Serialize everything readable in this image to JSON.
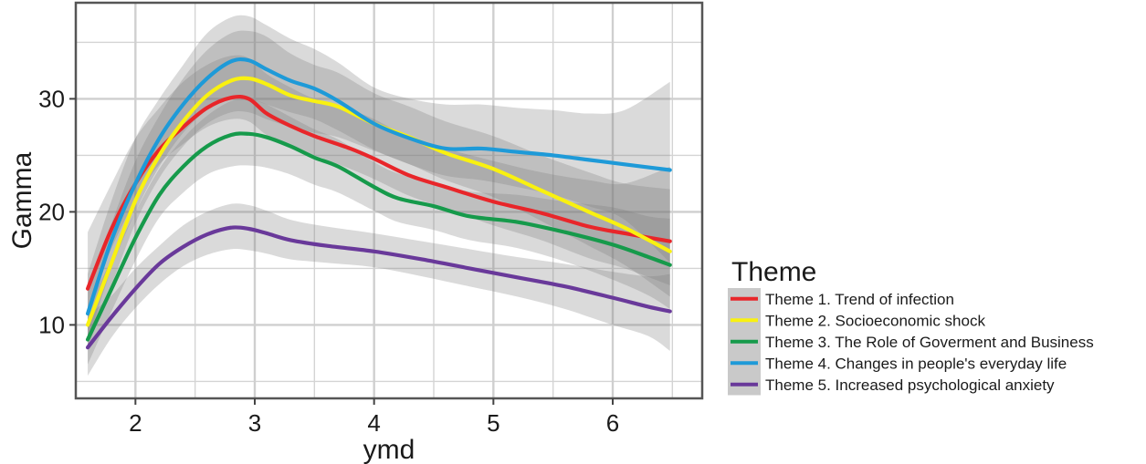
{
  "chart_data": {
    "type": "line",
    "xlabel": "ymd",
    "ylabel": "Gamma",
    "xlim": [
      1.5,
      6.75
    ],
    "ylim": [
      3.5,
      38.5
    ],
    "xticks": [
      2,
      3,
      4,
      5,
      6
    ],
    "yticks": [
      10,
      20,
      30
    ],
    "xtick_labels": [
      "2",
      "3",
      "4",
      "5",
      "6"
    ],
    "ytick_labels": [
      "10",
      "20",
      "30"
    ],
    "grid": true,
    "legend": {
      "title": "Theme",
      "placement": "right"
    },
    "series": [
      {
        "name": "Theme 1. Trend of infection",
        "color": "#e8262a",
        "x": [
          1.6,
          1.8,
          2.0,
          2.2,
          2.4,
          2.6,
          2.8,
          2.95,
          3.1,
          3.3,
          3.5,
          3.8,
          4.0,
          4.3,
          4.6,
          5.0,
          5.4,
          5.8,
          6.1,
          6.48
        ],
        "y": [
          13.2,
          18.5,
          22.5,
          25.5,
          27.5,
          29.2,
          30.1,
          30.0,
          28.7,
          27.6,
          26.7,
          25.6,
          24.7,
          23.2,
          22.2,
          20.9,
          19.9,
          18.7,
          18.1,
          17.4
        ],
        "band": [
          [
            11.5,
            18.2
          ],
          [
            16.8,
            22.5
          ],
          [
            21.0,
            26.5
          ],
          [
            24.2,
            29.2
          ],
          [
            26.0,
            31.5
          ],
          [
            27.5,
            33.0
          ],
          [
            28.2,
            33.8
          ],
          [
            28.0,
            33.6
          ],
          [
            26.8,
            32.2
          ],
          [
            25.8,
            31.0
          ],
          [
            25.0,
            30.0
          ],
          [
            23.8,
            29.0
          ],
          [
            22.9,
            28.2
          ],
          [
            21.4,
            26.6
          ],
          [
            20.3,
            25.6
          ],
          [
            18.8,
            24.5
          ],
          [
            17.5,
            23.5
          ],
          [
            15.9,
            22.8
          ],
          [
            15.0,
            22.5
          ],
          [
            13.5,
            24.0
          ]
        ]
      },
      {
        "name": "Theme 2. Socioeconomic shock",
        "color": "#f9f110",
        "x": [
          1.6,
          1.8,
          2.0,
          2.2,
          2.4,
          2.6,
          2.8,
          2.95,
          3.1,
          3.3,
          3.5,
          3.7,
          4.0,
          4.3,
          4.6,
          5.0,
          5.4,
          5.8,
          6.1,
          6.48
        ],
        "y": [
          10.0,
          15.5,
          21.0,
          25.0,
          28.0,
          30.3,
          31.6,
          31.8,
          31.3,
          30.3,
          29.8,
          29.3,
          27.8,
          26.6,
          25.2,
          23.8,
          21.9,
          20.0,
          18.6,
          16.5
        ],
        "band": [
          [
            8.0,
            13.0
          ],
          [
            13.5,
            19.0
          ],
          [
            19.0,
            24.5
          ],
          [
            23.0,
            28.5
          ],
          [
            25.8,
            31.8
          ],
          [
            27.8,
            34.3
          ],
          [
            28.8,
            35.8
          ],
          [
            28.8,
            36.0
          ],
          [
            28.2,
            35.5
          ],
          [
            27.5,
            34.0
          ],
          [
            27.0,
            33.0
          ],
          [
            26.6,
            32.3
          ],
          [
            25.4,
            30.5
          ],
          [
            24.2,
            29.3
          ],
          [
            22.8,
            28.0
          ],
          [
            21.3,
            26.7
          ],
          [
            19.2,
            25.0
          ],
          [
            17.0,
            23.5
          ],
          [
            15.3,
            22.5
          ],
          [
            12.5,
            22.0
          ]
        ]
      },
      {
        "name": "Theme 3. The Role of Goverment and Business",
        "color": "#169a4b",
        "x": [
          1.6,
          1.8,
          2.0,
          2.2,
          2.4,
          2.6,
          2.8,
          2.95,
          3.1,
          3.3,
          3.5,
          3.7,
          4.0,
          4.2,
          4.5,
          4.8,
          5.2,
          5.6,
          6.0,
          6.3,
          6.48
        ],
        "y": [
          8.7,
          13.2,
          17.7,
          21.5,
          24.0,
          25.8,
          26.8,
          26.9,
          26.6,
          25.8,
          24.8,
          24.0,
          22.2,
          21.2,
          20.5,
          19.6,
          19.1,
          18.2,
          17.1,
          16.0,
          15.3
        ],
        "band": [
          [
            6.5,
            11.5
          ],
          [
            11.2,
            15.8
          ],
          [
            15.7,
            20.0
          ],
          [
            19.5,
            23.8
          ],
          [
            21.7,
            26.5
          ],
          [
            23.3,
            28.5
          ],
          [
            24.0,
            29.8
          ],
          [
            24.1,
            30.0
          ],
          [
            23.9,
            29.5
          ],
          [
            23.3,
            28.4
          ],
          [
            22.4,
            27.3
          ],
          [
            21.7,
            26.4
          ],
          [
            20.1,
            24.4
          ],
          [
            19.1,
            23.4
          ],
          [
            18.4,
            22.6
          ],
          [
            17.5,
            21.8
          ],
          [
            16.8,
            21.5
          ],
          [
            15.6,
            20.9
          ],
          [
            14.0,
            20.4
          ],
          [
            12.6,
            19.6
          ],
          [
            11.4,
            19.4
          ]
        ]
      },
      {
        "name": "Theme 4. Changes in people's everyday life",
        "color": "#1e9ad8",
        "x": [
          1.6,
          1.8,
          2.0,
          2.2,
          2.4,
          2.6,
          2.8,
          2.95,
          3.1,
          3.3,
          3.5,
          3.7,
          4.0,
          4.3,
          4.6,
          4.9,
          5.2,
          5.5,
          5.8,
          6.1,
          6.48
        ],
        "y": [
          11.0,
          17.5,
          22.5,
          26.5,
          29.5,
          31.8,
          33.3,
          33.4,
          32.6,
          31.6,
          30.9,
          29.8,
          27.8,
          26.5,
          25.6,
          25.6,
          25.3,
          25.0,
          24.6,
          24.2,
          23.7
        ],
        "band": [
          [
            8.5,
            14.5
          ],
          [
            15.0,
            21.0
          ],
          [
            20.0,
            26.5
          ],
          [
            24.0,
            30.0
          ],
          [
            27.0,
            33.0
          ],
          [
            29.0,
            35.8
          ],
          [
            30.0,
            37.2
          ],
          [
            30.0,
            37.3
          ],
          [
            29.5,
            36.5
          ],
          [
            28.8,
            35.3
          ],
          [
            28.2,
            34.4
          ],
          [
            27.2,
            33.2
          ],
          [
            25.5,
            31.0
          ],
          [
            24.2,
            30.0
          ],
          [
            23.2,
            29.5
          ],
          [
            22.8,
            29.5
          ],
          [
            22.2,
            29.2
          ],
          [
            21.5,
            29.0
          ],
          [
            20.5,
            28.7
          ],
          [
            19.3,
            29.0
          ],
          [
            15.5,
            31.5
          ]
        ]
      },
      {
        "name": "Theme 5. Increased psychological anxiety",
        "color": "#69399a",
        "x": [
          1.6,
          1.8,
          2.0,
          2.2,
          2.4,
          2.6,
          2.8,
          2.95,
          3.1,
          3.3,
          3.6,
          4.0,
          4.4,
          4.8,
          5.2,
          5.6,
          6.0,
          6.3,
          6.48
        ],
        "y": [
          8.0,
          10.7,
          13.2,
          15.4,
          16.9,
          18.0,
          18.6,
          18.5,
          18.1,
          17.5,
          17.0,
          16.5,
          15.8,
          15.0,
          14.2,
          13.4,
          12.4,
          11.6,
          11.2
        ],
        "band": [
          [
            5.5,
            10.8
          ],
          [
            8.9,
            12.6
          ],
          [
            11.5,
            15.0
          ],
          [
            13.6,
            17.0
          ],
          [
            15.2,
            18.8
          ],
          [
            16.2,
            20.0
          ],
          [
            16.7,
            20.7
          ],
          [
            16.6,
            20.6
          ],
          [
            16.3,
            20.1
          ],
          [
            15.8,
            19.3
          ],
          [
            15.5,
            18.7
          ],
          [
            15.1,
            18.1
          ],
          [
            14.3,
            17.4
          ],
          [
            13.4,
            16.7
          ],
          [
            12.5,
            16.0
          ],
          [
            11.4,
            15.4
          ],
          [
            10.0,
            14.7
          ],
          [
            9.0,
            14.3
          ],
          [
            7.7,
            14.5
          ]
        ]
      }
    ]
  }
}
